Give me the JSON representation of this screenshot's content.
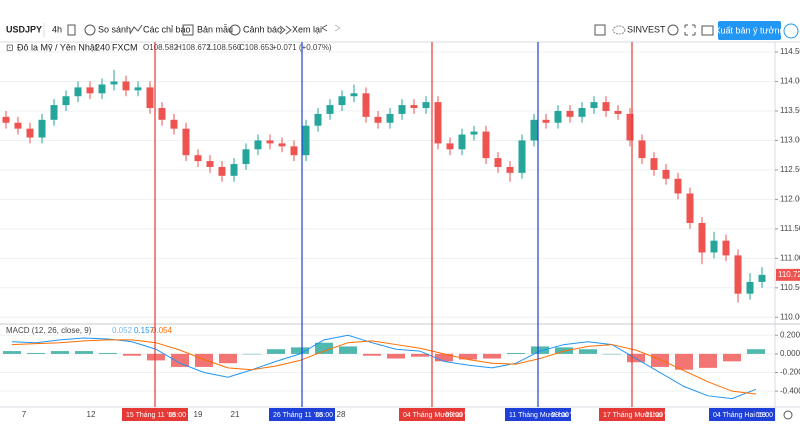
{
  "toolbar": {
    "symbol": "USDJPY",
    "interval": "4h",
    "compare": "So sánh",
    "indicators": "Các chỉ báo",
    "templates": "Bản mẫu",
    "alerts": "Cảnh báo",
    "replay": "Xem lại",
    "account": "SINVEST",
    "publish": "Xuất bản ý tưởng"
  },
  "legend": {
    "name": "Đô la Mỹ / Yên Nhật",
    "interval": "240",
    "source": "FXCM",
    "open": "O108.582",
    "high": "H108.672",
    "low": "L108.560",
    "close": "C108.653",
    "change": "+0.071 (+0.07%)"
  },
  "time_axis": {
    "labels": [
      "7",
      "12",
      "19",
      "21",
      "28"
    ],
    "markers": [
      {
        "date": "15 Tháng 11 '18",
        "time": "05:00",
        "color": "#e53935",
        "line": true
      },
      {
        "date": "26 Tháng 11 '18",
        "time": "05:00",
        "color": "#1e40d8",
        "line": true
      },
      {
        "date": "04 Tháng Mười hai '18",
        "time": "09:00",
        "color": "#e53935",
        "line": true
      },
      {
        "date": "11 Tháng Mười hai '18",
        "time": "09:00",
        "color": "#1e40d8",
        "line": true
      },
      {
        "date": "17 Tháng Mười hai '18",
        "time": "21:00",
        "color": "#e53935",
        "line": true
      },
      {
        "date": "04 Tháng Hai '19",
        "time": "05:00",
        "color": "#1e40d8",
        "line": false
      }
    ]
  },
  "chart_data": [
    {
      "type": "candlestick",
      "up_color": "#26a69a",
      "down_color": "#ef5350",
      "last_price_label": "110.720",
      "ylim": [
        109.92,
        114.67
      ],
      "yticks": [
        {
          "value": 114.5,
          "label": "114.500"
        },
        {
          "value": 114,
          "label": "114.000"
        },
        {
          "value": 113.5,
          "label": "113.500"
        },
        {
          "value": 113,
          "label": "113.000"
        },
        {
          "value": 112.5,
          "label": "112.500"
        },
        {
          "value": 112,
          "label": "112.000"
        },
        {
          "value": 111.5,
          "label": "111.500"
        },
        {
          "value": 111,
          "label": "111.000"
        },
        {
          "value": 110.5,
          "label": "110.500"
        },
        {
          "value": 110,
          "label": "110.000"
        }
      ],
      "candles": [
        [
          113.4,
          113.5,
          113.2,
          113.3
        ],
        [
          113.3,
          113.4,
          113.1,
          113.2
        ],
        [
          113.2,
          113.3,
          112.95,
          113.05
        ],
        [
          113.05,
          113.45,
          112.95,
          113.35
        ],
        [
          113.35,
          113.7,
          113.25,
          113.6
        ],
        [
          113.6,
          113.85,
          113.5,
          113.75
        ],
        [
          113.75,
          114.0,
          113.65,
          113.9
        ],
        [
          113.9,
          114.0,
          113.7,
          113.8
        ],
        [
          113.8,
          114.05,
          113.7,
          113.95
        ],
        [
          113.95,
          114.2,
          113.85,
          114.0
        ],
        [
          114.0,
          114.1,
          113.75,
          113.85
        ],
        [
          113.85,
          114.0,
          113.75,
          113.9
        ],
        [
          113.9,
          114.0,
          113.45,
          113.55
        ],
        [
          113.55,
          113.65,
          113.25,
          113.35
        ],
        [
          113.35,
          113.45,
          113.1,
          113.2
        ],
        [
          113.2,
          113.3,
          112.65,
          112.75
        ],
        [
          112.75,
          112.85,
          112.55,
          112.65
        ],
        [
          112.65,
          112.75,
          112.45,
          112.55
        ],
        [
          112.55,
          112.65,
          112.3,
          112.4
        ],
        [
          112.4,
          112.7,
          112.3,
          112.6
        ],
        [
          112.6,
          112.95,
          112.5,
          112.85
        ],
        [
          112.85,
          113.1,
          112.75,
          113.0
        ],
        [
          113.0,
          113.1,
          112.85,
          112.95
        ],
        [
          112.95,
          113.05,
          112.8,
          112.9
        ],
        [
          112.9,
          113.0,
          112.65,
          112.75
        ],
        [
          112.75,
          113.35,
          112.65,
          113.25
        ],
        [
          113.25,
          113.55,
          113.15,
          113.45
        ],
        [
          113.45,
          113.7,
          113.35,
          113.6
        ],
        [
          113.6,
          113.85,
          113.5,
          113.75
        ],
        [
          113.75,
          113.95,
          113.65,
          113.8
        ],
        [
          113.8,
          113.9,
          113.3,
          113.4
        ],
        [
          113.4,
          113.5,
          113.2,
          113.3
        ],
        [
          113.3,
          113.55,
          113.2,
          113.45
        ],
        [
          113.45,
          113.7,
          113.35,
          113.6
        ],
        [
          113.6,
          113.7,
          113.45,
          113.55
        ],
        [
          113.55,
          113.75,
          113.45,
          113.65
        ],
        [
          113.65,
          113.75,
          112.85,
          112.95
        ],
        [
          112.95,
          113.05,
          112.75,
          112.85
        ],
        [
          112.85,
          113.2,
          112.75,
          113.1
        ],
        [
          113.1,
          113.25,
          113.0,
          113.15
        ],
        [
          113.15,
          113.25,
          112.6,
          112.7
        ],
        [
          112.7,
          112.8,
          112.45,
          112.55
        ],
        [
          112.55,
          112.65,
          112.3,
          112.45
        ],
        [
          112.45,
          113.1,
          112.35,
          113.0
        ],
        [
          113.0,
          113.45,
          112.9,
          113.35
        ],
        [
          113.35,
          113.45,
          113.2,
          113.3
        ],
        [
          113.3,
          113.6,
          113.2,
          113.5
        ],
        [
          113.5,
          113.6,
          113.3,
          113.4
        ],
        [
          113.4,
          113.65,
          113.3,
          113.55
        ],
        [
          113.55,
          113.75,
          113.45,
          113.65
        ],
        [
          113.65,
          113.75,
          113.4,
          113.5
        ],
        [
          113.5,
          113.6,
          113.35,
          113.45
        ],
        [
          113.45,
          113.55,
          112.9,
          113.0
        ],
        [
          113.0,
          113.1,
          112.6,
          112.7
        ],
        [
          112.7,
          112.8,
          112.4,
          112.5
        ],
        [
          112.5,
          112.6,
          112.25,
          112.35
        ],
        [
          112.35,
          112.45,
          112.0,
          112.1
        ],
        [
          112.1,
          112.2,
          111.5,
          111.6
        ],
        [
          111.6,
          111.7,
          110.9,
          111.1
        ],
        [
          111.1,
          111.45,
          111.0,
          111.3
        ],
        [
          111.3,
          111.4,
          110.95,
          111.05
        ],
        [
          111.05,
          111.15,
          110.25,
          110.4
        ],
        [
          110.4,
          110.75,
          110.3,
          110.6
        ],
        [
          110.6,
          110.85,
          110.5,
          110.72
        ]
      ]
    },
    {
      "type": "macd",
      "title": "MACD (12, 26, close, 9)",
      "value_labels": [
        "0.052",
        "0.157",
        "0.054"
      ],
      "ylim": [
        -0.57,
        0.31
      ],
      "yticks": [
        {
          "value": 0.2,
          "label": "0.200"
        },
        {
          "value": 0,
          "label": "0.000"
        },
        {
          "value": -0.2,
          "label": "-0.200"
        },
        {
          "value": -0.4,
          "label": "-0.400"
        }
      ],
      "histogram": {
        "up_color": "#26a69a",
        "down_color": "#ef5350",
        "values": [
          0.03,
          0.01,
          0.03,
          0.03,
          0.01,
          -0.02,
          -0.07,
          -0.14,
          -0.14,
          -0.1,
          0.0,
          0.05,
          0.07,
          0.12,
          0.08,
          -0.02,
          -0.05,
          -0.03,
          -0.08,
          -0.06,
          -0.05,
          0.01,
          0.08,
          0.07,
          0.05,
          0.0,
          -0.09,
          -0.14,
          -0.17,
          -0.15,
          -0.08,
          0.05
        ]
      },
      "series": [
        {
          "color": "#2196f3",
          "values": [
            0.13,
            0.12,
            0.15,
            0.17,
            0.16,
            0.13,
            0.05,
            -0.1,
            -0.2,
            -0.25,
            -0.17,
            -0.08,
            0.0,
            0.15,
            0.2,
            0.12,
            0.05,
            0.03,
            -0.08,
            -0.12,
            -0.15,
            -0.1,
            0.03,
            0.1,
            0.13,
            0.1,
            -0.05,
            -0.2,
            -0.35,
            -0.45,
            -0.48,
            -0.38
          ]
        },
        {
          "color": "#ff6d00",
          "values": [
            0.1,
            0.11,
            0.12,
            0.14,
            0.15,
            0.15,
            0.12,
            0.04,
            -0.06,
            -0.15,
            -0.17,
            -0.13,
            -0.07,
            0.03,
            0.12,
            0.14,
            0.1,
            0.06,
            0.0,
            -0.06,
            -0.1,
            -0.11,
            -0.05,
            0.03,
            0.08,
            0.1,
            0.04,
            -0.06,
            -0.18,
            -0.3,
            -0.4,
            -0.43
          ]
        }
      ]
    }
  ]
}
